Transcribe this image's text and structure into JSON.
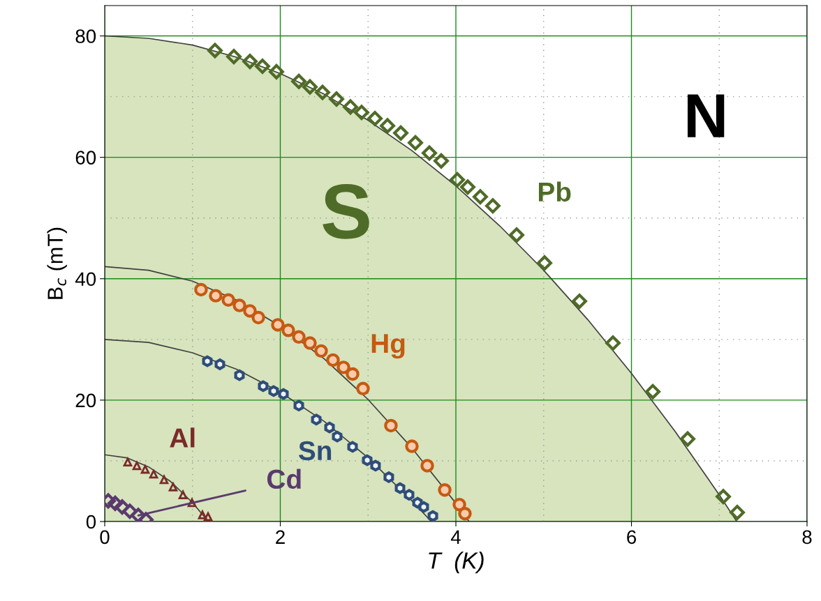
{
  "chart_data": {
    "type": "scatter",
    "xlabel": "T  (K)",
    "ylabel": "B$_{c}$ (mT)",
    "xlim": [
      0,
      8
    ],
    "ylim": [
      0,
      85
    ],
    "xticks": [
      0,
      2,
      4,
      6,
      8
    ],
    "yticks": [
      0,
      20,
      40,
      60,
      80
    ],
    "grid": true,
    "series": [
      {
        "type": "area",
        "color": "#d7e4bd",
        "x": [
          0,
          0.5,
          1,
          1.5,
          2,
          2.5,
          3,
          3.5,
          4,
          4.5,
          5,
          5.5,
          6,
          6.5,
          7,
          7.2
        ],
        "values": [
          80,
          79.6,
          78.5,
          76.5,
          73.8,
          70.4,
          66.1,
          61.1,
          55.3,
          48.7,
          41.4,
          33.3,
          24.4,
          14.8,
          4.4,
          0
        ]
      },
      {
        "type": "line",
        "color": "#404040",
        "x": [
          0,
          0.5,
          1,
          1.5,
          2,
          2.5,
          3,
          3.5,
          4,
          4.15
        ],
        "values": [
          42,
          41.4,
          39.6,
          36.5,
          32.2,
          26.8,
          20.1,
          12.1,
          3.0,
          0
        ]
      },
      {
        "type": "line",
        "color": "#404040",
        "x": [
          0,
          0.5,
          1,
          1.5,
          2,
          2.5,
          3,
          3.5,
          3.72
        ],
        "values": [
          30,
          29.5,
          27.8,
          25.1,
          21.3,
          16.5,
          10.5,
          3.4,
          0
        ]
      },
      {
        "type": "line",
        "color": "#404040",
        "x": [
          0,
          0.25,
          0.5,
          0.75,
          1,
          1.18
        ],
        "values": [
          11,
          10.5,
          9.0,
          6.6,
          3.1,
          0
        ]
      },
      {
        "marker": "diamond",
        "color": "#4f6b28",
        "x": [
          1.256,
          1.471,
          1.654,
          1.797,
          1.956,
          2.211,
          2.338,
          2.481,
          2.64,
          2.799,
          2.926,
          3.078,
          3.221,
          3.372,
          3.539,
          3.698,
          3.833,
          4.016,
          4.135,
          4.278,
          4.421,
          4.692,
          5.01,
          5.408,
          5.789,
          6.243,
          6.64,
          7.046,
          7.205
        ],
        "values": [
          77.6,
          76.6,
          75.8,
          75.0,
          74.1,
          72.5,
          71.6,
          70.7,
          69.6,
          68.3,
          67.4,
          66.4,
          65.2,
          64.0,
          62.4,
          60.7,
          59.4,
          56.3,
          55.1,
          53.5,
          52.0,
          47.2,
          42.6,
          36.3,
          29.4,
          21.4,
          13.6,
          4.1,
          1.5
        ]
      },
      {
        "marker": "circle",
        "color": "#c55a11",
        "x": [
          1.097,
          1.264,
          1.408,
          1.535,
          1.654,
          1.75,
          1.972,
          2.091,
          2.211,
          2.338,
          2.465,
          2.6,
          2.72,
          2.823,
          2.942,
          3.26,
          3.499,
          3.674,
          3.873,
          4.04,
          4.103
        ],
        "values": [
          38.2,
          37.2,
          36.5,
          35.6,
          34.7,
          33.6,
          32.4,
          31.5,
          30.4,
          29.4,
          28.1,
          26.6,
          25.4,
          24.3,
          21.9,
          15.8,
          12.4,
          9.2,
          5.2,
          2.8,
          1.3
        ]
      },
      {
        "color": "#2e4d78",
        "x": [
          1.169,
          1.312,
          1.535,
          1.805,
          1.924,
          2.036,
          2.211,
          2.41,
          2.561,
          2.648,
          2.823,
          2.99,
          3.085,
          3.236,
          3.364,
          3.467,
          3.563,
          3.634,
          3.738
        ],
        "values": [
          26.4,
          25.9,
          24.1,
          22.3,
          21.5,
          21.0,
          19.1,
          16.8,
          15.5,
          14.0,
          12.3,
          10.1,
          9.2,
          7.3,
          5.5,
          4.4,
          3.1,
          2.4,
          0.9
        ]
      },
      {
        "marker": "triangle",
        "color": "#7b2a2a",
        "x": [
          0.262,
          0.366,
          0.461,
          0.557,
          0.676,
          0.779,
          0.891,
          0.994,
          1.113,
          1.177
        ],
        "values": [
          9.8,
          9.2,
          8.6,
          7.8,
          6.9,
          5.7,
          4.4,
          3.1,
          1.1,
          0.8
        ]
      },
      {
        "marker": "diamond",
        "color": "#5a3a6e",
        "x": [
          0.04,
          0.119,
          0.199,
          0.286,
          0.382,
          0.469
        ],
        "values": [
          3.4,
          3.0,
          2.4,
          1.7,
          1.0,
          0.3
        ]
      }
    ],
    "annotations": [
      "S",
      "N",
      {
        "text": "Pb",
        "x": 4.692,
        "y": 47.2
      },
      {
        "text": "Hg",
        "x": 2.942,
        "y": 21.9
      },
      {
        "text": "Sn",
        "x": 2.211,
        "y": 19.1
      },
      {
        "text": "Al",
        "x": 0.557,
        "y": 7.8
      },
      {
        "text": "Cd",
        "x": 0.382,
        "y": 1.0
      }
    ]
  }
}
